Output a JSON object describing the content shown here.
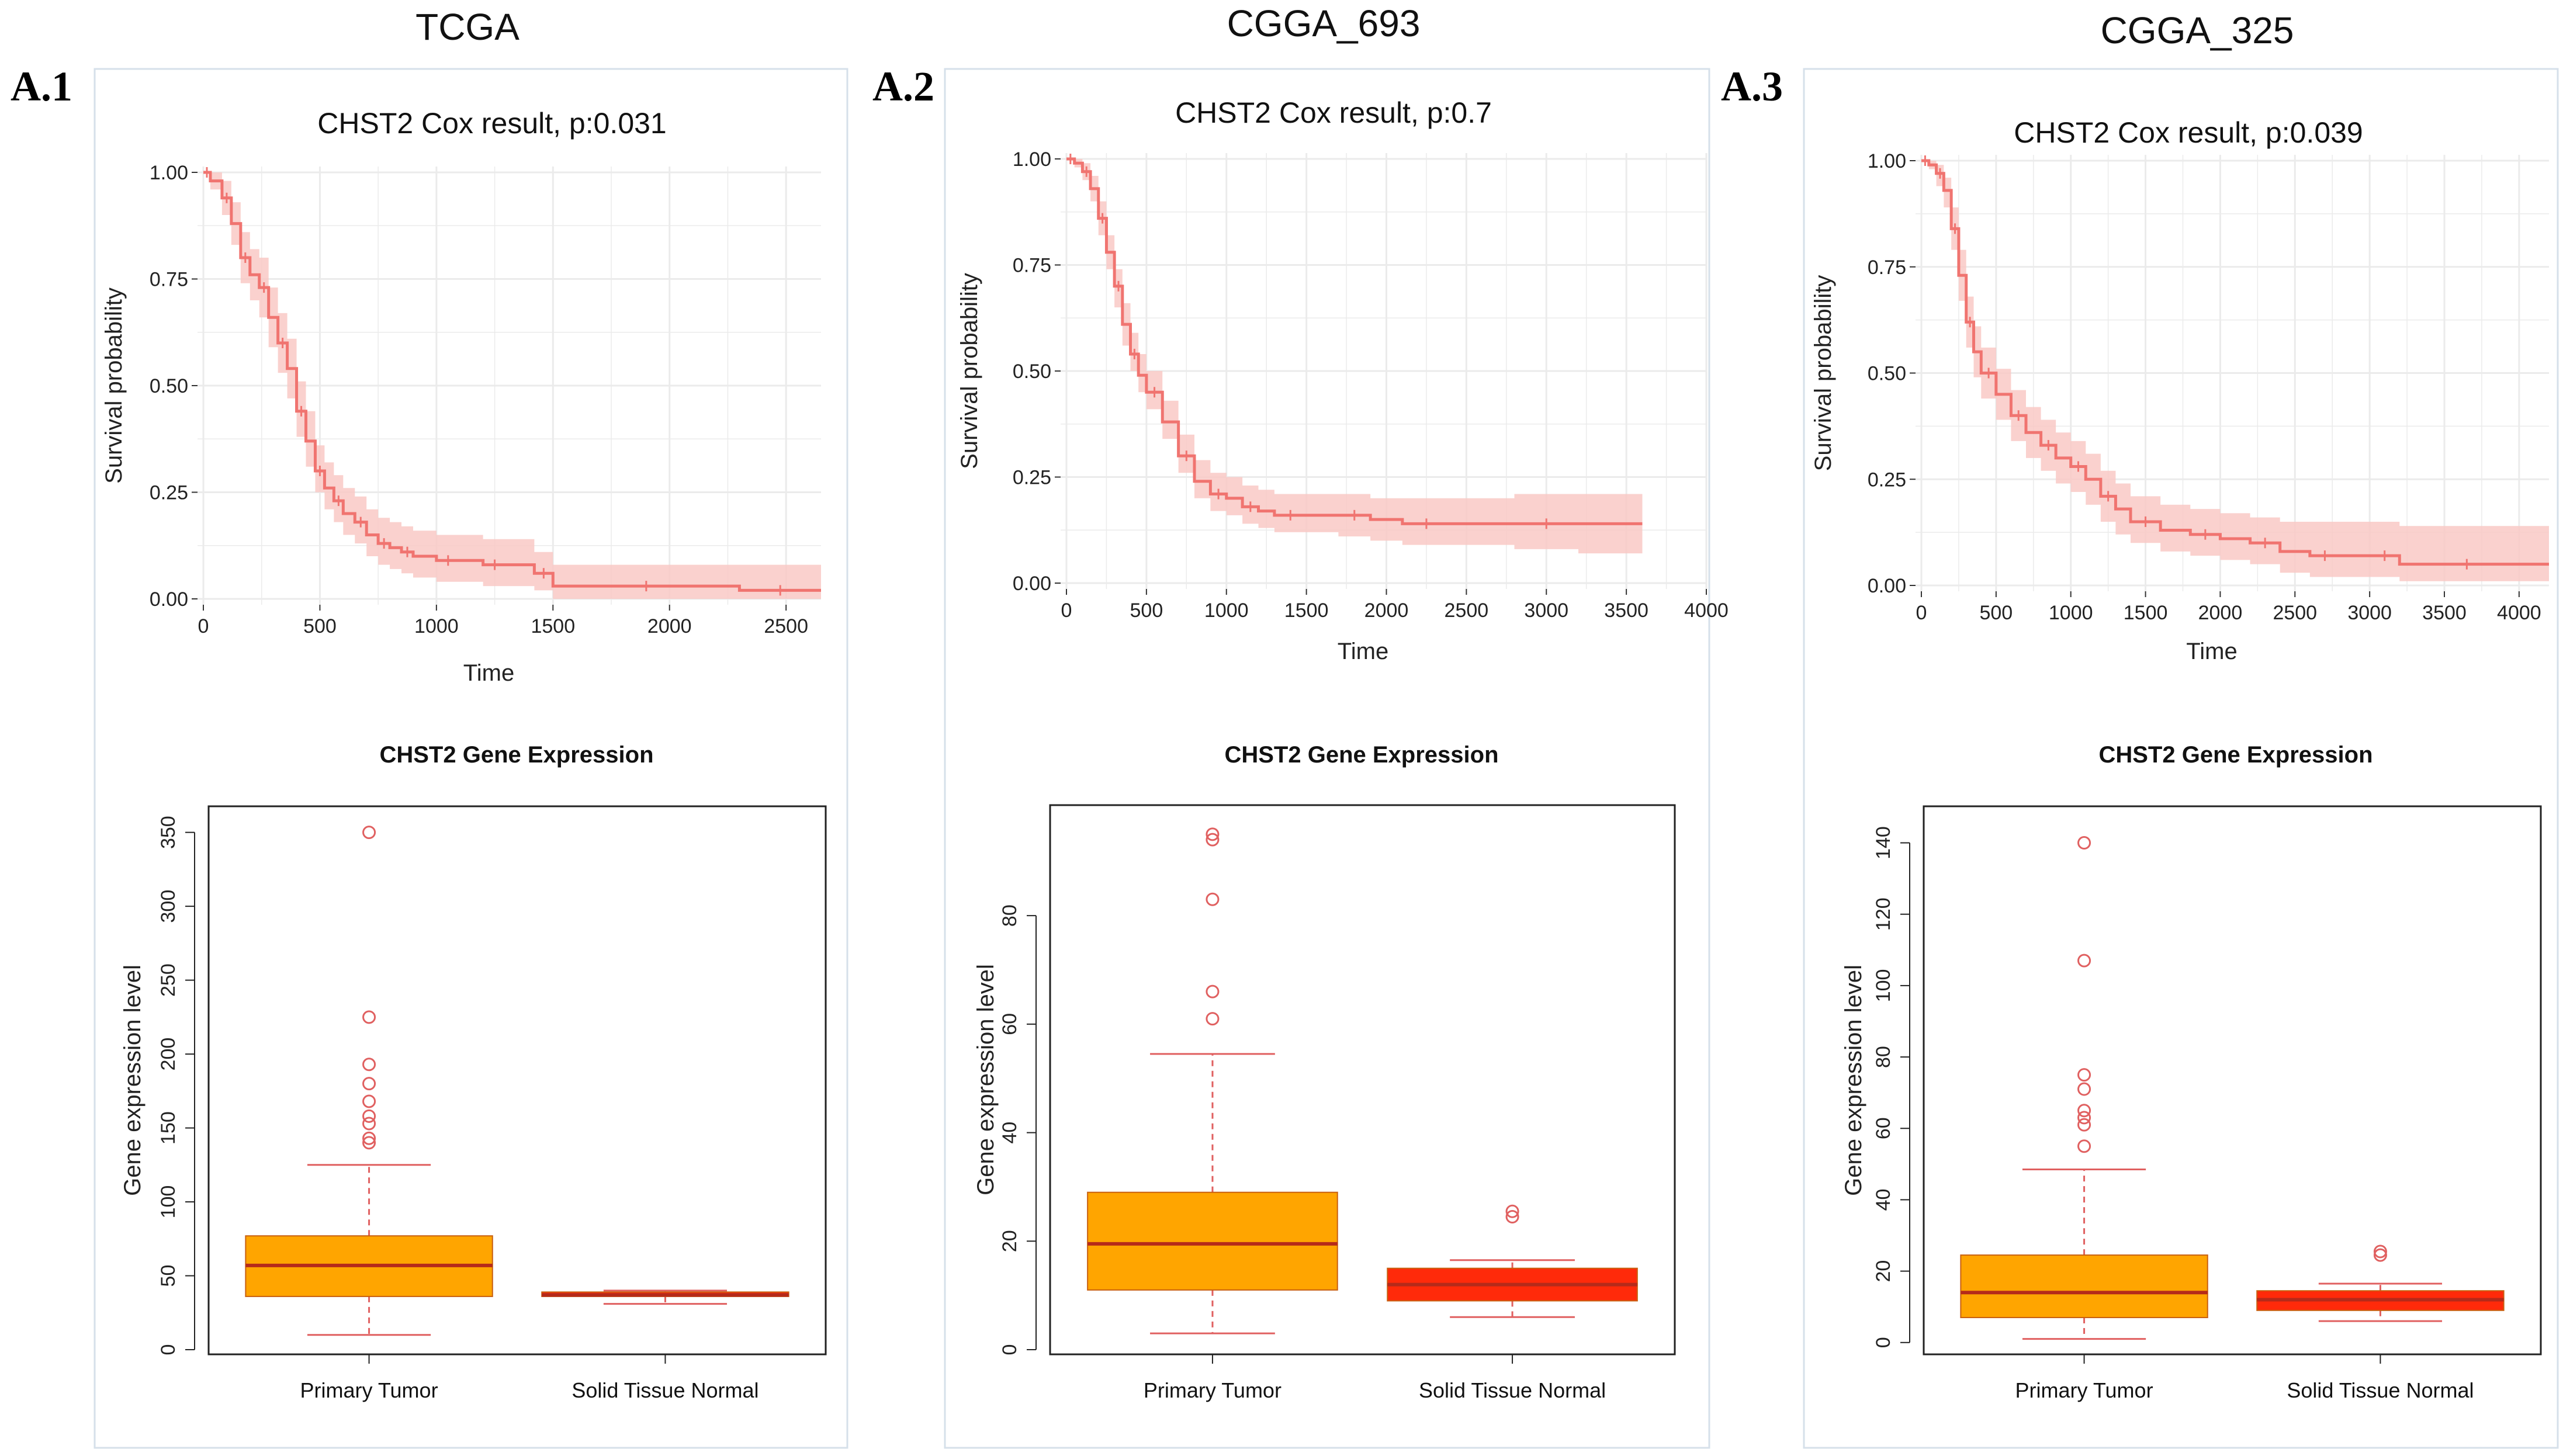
{
  "datasets": [
    {
      "name": "TCGA",
      "label": "A.1"
    },
    {
      "name": "CGGA_693",
      "label": "A.2"
    },
    {
      "name": "CGGA_325",
      "label": "A.3"
    }
  ],
  "colors": {
    "km_line": "#f07470",
    "km_band": "#f9c9c6",
    "tumor_box": "#ffa500",
    "normal_box": "#ff2a0a",
    "median": "#b52a1a",
    "outlier": "#e06060",
    "grid": "#ebebeb",
    "panel_border": "#d6e0ea"
  },
  "chart_data": [
    {
      "type": "line",
      "chart_kind": "kaplan-meier",
      "dataset": "TCGA",
      "title": "CHST2 Cox result, p:0.031",
      "xlabel": "Time",
      "ylabel": "Survival probability",
      "xlim": [
        0,
        2650
      ],
      "ylim": [
        0,
        1
      ],
      "xticks": [
        "0",
        "500",
        "1000",
        "1500",
        "2000",
        "2500"
      ],
      "yticks": [
        "0.00",
        "0.25",
        "0.50",
        "0.75",
        "1.00"
      ],
      "series": [
        {
          "name": "survival",
          "x": [
            0,
            30,
            80,
            120,
            160,
            200,
            240,
            280,
            320,
            360,
            400,
            440,
            480,
            520,
            560,
            600,
            650,
            700,
            750,
            800,
            850,
            900,
            1000,
            1100,
            1200,
            1300,
            1420,
            1500,
            1700,
            2100,
            2300,
            2650
          ],
          "y": [
            1.0,
            0.98,
            0.94,
            0.88,
            0.8,
            0.76,
            0.73,
            0.66,
            0.6,
            0.54,
            0.44,
            0.37,
            0.3,
            0.26,
            0.23,
            0.2,
            0.18,
            0.15,
            0.13,
            0.12,
            0.11,
            0.1,
            0.09,
            0.09,
            0.08,
            0.08,
            0.06,
            0.03,
            0.03,
            0.03,
            0.02,
            0.02
          ],
          "lower": [
            1.0,
            0.96,
            0.9,
            0.83,
            0.74,
            0.7,
            0.66,
            0.59,
            0.53,
            0.47,
            0.38,
            0.31,
            0.25,
            0.21,
            0.18,
            0.15,
            0.13,
            0.1,
            0.08,
            0.07,
            0.06,
            0.05,
            0.04,
            0.04,
            0.03,
            0.03,
            0.02,
            0.0,
            0.0,
            0.0,
            0.0,
            0.0
          ],
          "upper": [
            1.0,
            1.0,
            0.98,
            0.93,
            0.86,
            0.82,
            0.8,
            0.73,
            0.67,
            0.61,
            0.51,
            0.44,
            0.36,
            0.32,
            0.29,
            0.26,
            0.24,
            0.21,
            0.19,
            0.18,
            0.17,
            0.16,
            0.15,
            0.15,
            0.14,
            0.14,
            0.11,
            0.08,
            0.08,
            0.08,
            0.08,
            0.08
          ]
        }
      ]
    },
    {
      "type": "line",
      "chart_kind": "kaplan-meier",
      "dataset": "CGGA_693",
      "title": "CHST2 Cox result, p:0.7",
      "xlabel": "Time",
      "ylabel": "Survival probability",
      "xlim": [
        0,
        4000
      ],
      "ylim": [
        0,
        1
      ],
      "xticks": [
        "0",
        "500",
        "1000",
        "1500",
        "2000",
        "2500",
        "3000",
        "3500",
        "4000"
      ],
      "yticks": [
        "0.00",
        "0.25",
        "0.50",
        "0.75",
        "1.00"
      ],
      "series": [
        {
          "name": "survival",
          "x": [
            0,
            50,
            100,
            150,
            200,
            250,
            300,
            350,
            400,
            450,
            500,
            600,
            700,
            800,
            900,
            1000,
            1100,
            1200,
            1300,
            1500,
            1700,
            1900,
            2100,
            2400,
            2800,
            3200,
            3600
          ],
          "y": [
            1.0,
            0.99,
            0.97,
            0.93,
            0.86,
            0.78,
            0.7,
            0.61,
            0.54,
            0.49,
            0.45,
            0.38,
            0.3,
            0.24,
            0.21,
            0.2,
            0.18,
            0.17,
            0.16,
            0.16,
            0.16,
            0.15,
            0.14,
            0.14,
            0.14,
            0.14,
            0.14
          ],
          "lower": [
            1.0,
            0.98,
            0.95,
            0.9,
            0.82,
            0.74,
            0.65,
            0.56,
            0.5,
            0.45,
            0.41,
            0.34,
            0.26,
            0.2,
            0.17,
            0.16,
            0.14,
            0.13,
            0.12,
            0.12,
            0.11,
            0.1,
            0.09,
            0.09,
            0.08,
            0.07,
            0.07
          ],
          "upper": [
            1.0,
            1.0,
            0.99,
            0.96,
            0.9,
            0.82,
            0.74,
            0.66,
            0.59,
            0.54,
            0.5,
            0.43,
            0.35,
            0.29,
            0.26,
            0.25,
            0.23,
            0.22,
            0.21,
            0.21,
            0.21,
            0.2,
            0.2,
            0.2,
            0.21,
            0.21,
            0.22
          ]
        }
      ]
    },
    {
      "type": "line",
      "chart_kind": "kaplan-meier",
      "dataset": "CGGA_325",
      "title": "CHST2 Cox result, p:0.039",
      "xlabel": "Time",
      "ylabel": "Survival probability",
      "xlim": [
        0,
        4200
      ],
      "ylim": [
        0,
        1
      ],
      "xticks": [
        "0",
        "500",
        "1000",
        "1500",
        "2000",
        "2500",
        "3000",
        "3500",
        "4000"
      ],
      "yticks": [
        "0.00",
        "0.25",
        "0.50",
        "0.75",
        "1.00"
      ],
      "series": [
        {
          "name": "survival",
          "x": [
            0,
            50,
            100,
            150,
            200,
            250,
            300,
            350,
            400,
            500,
            600,
            700,
            800,
            900,
            1000,
            1100,
            1200,
            1300,
            1400,
            1600,
            1800,
            2000,
            2200,
            2400,
            2600,
            2800,
            3000,
            3200,
            3500,
            3800,
            4200
          ],
          "y": [
            1.0,
            0.99,
            0.97,
            0.93,
            0.84,
            0.73,
            0.62,
            0.55,
            0.5,
            0.45,
            0.4,
            0.36,
            0.33,
            0.3,
            0.28,
            0.25,
            0.21,
            0.18,
            0.15,
            0.13,
            0.12,
            0.11,
            0.1,
            0.08,
            0.07,
            0.07,
            0.07,
            0.05,
            0.05,
            0.05,
            0.05
          ],
          "lower": [
            1.0,
            0.98,
            0.94,
            0.89,
            0.79,
            0.67,
            0.56,
            0.49,
            0.44,
            0.39,
            0.34,
            0.3,
            0.27,
            0.24,
            0.22,
            0.19,
            0.15,
            0.12,
            0.1,
            0.08,
            0.07,
            0.06,
            0.05,
            0.03,
            0.02,
            0.02,
            0.02,
            0.01,
            0.01,
            0.01,
            0.01
          ],
          "upper": [
            1.0,
            1.0,
            0.99,
            0.96,
            0.89,
            0.79,
            0.68,
            0.61,
            0.56,
            0.51,
            0.46,
            0.42,
            0.39,
            0.36,
            0.34,
            0.31,
            0.27,
            0.24,
            0.21,
            0.19,
            0.18,
            0.17,
            0.16,
            0.15,
            0.15,
            0.15,
            0.15,
            0.14,
            0.14,
            0.14,
            0.14
          ]
        }
      ]
    },
    {
      "type": "box",
      "dataset": "TCGA",
      "title": "CHST2 Gene Expression",
      "xlabel": "",
      "ylabel": "Gene expression level",
      "ylim": [
        0,
        355
      ],
      "yticks": [
        "0",
        "50",
        "100",
        "150",
        "200",
        "250",
        "300",
        "350"
      ],
      "categories": [
        "Primary Tumor",
        "Solid Tissue Normal"
      ],
      "boxes": [
        {
          "min": 10,
          "q1": 36,
          "median": 57,
          "q3": 77,
          "max": 125,
          "outliers": [
            140,
            143,
            153,
            158,
            168,
            180,
            193,
            225,
            350
          ]
        },
        {
          "min": 31,
          "q1": 36,
          "median": 37,
          "q3": 39,
          "max": 40,
          "outliers": []
        }
      ]
    },
    {
      "type": "box",
      "dataset": "CGGA_693",
      "title": "CHST2 Gene Expression",
      "xlabel": "",
      "ylabel": "Gene expression level",
      "ylim": [
        0,
        98
      ],
      "yticks": [
        "0",
        "20",
        "40",
        "60",
        "80"
      ],
      "categories": [
        "Primary Tumor",
        "Solid Tissue Normal"
      ],
      "boxes": [
        {
          "min": 3,
          "q1": 11,
          "median": 19.5,
          "q3": 29,
          "max": 54.5,
          "outliers": [
            61,
            66,
            83,
            94,
            95
          ]
        },
        {
          "min": 6,
          "q1": 9,
          "median": 12,
          "q3": 15,
          "max": 16.5,
          "outliers": [
            24.5,
            25.5
          ]
        }
      ]
    },
    {
      "type": "box",
      "dataset": "CGGA_325",
      "title": "CHST2 Gene Expression",
      "xlabel": "",
      "ylabel": "Gene expression level",
      "ylim": [
        -2,
        145
      ],
      "yticks": [
        "0",
        "20",
        "40",
        "60",
        "80",
        "100",
        "120",
        "140"
      ],
      "categories": [
        "Primary Tumor",
        "Solid Tissue Normal"
      ],
      "boxes": [
        {
          "min": 1,
          "q1": 7,
          "median": 14,
          "q3": 24.5,
          "max": 48.5,
          "outliers": [
            55,
            61,
            63,
            65,
            71,
            75,
            107,
            140
          ]
        },
        {
          "min": 6,
          "q1": 9,
          "median": 12,
          "q3": 14.5,
          "max": 16.5,
          "outliers": [
            24.5,
            25.5
          ]
        }
      ]
    }
  ]
}
